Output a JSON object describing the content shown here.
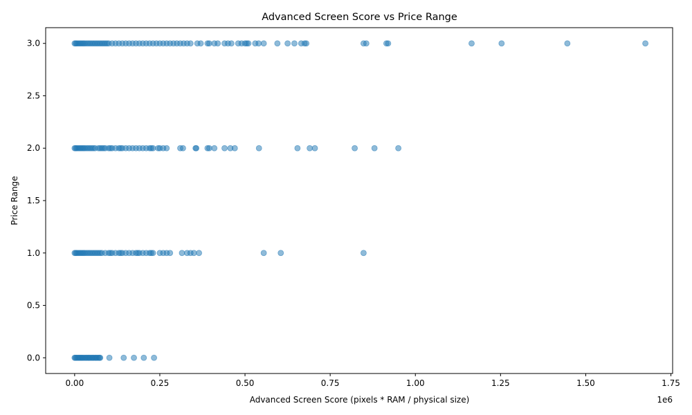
{
  "chart_data": {
    "type": "scatter",
    "title": "Advanced Screen Score vs Price Range",
    "xlabel": "Advanced Screen Score (pixels * RAM / physical size)",
    "ylabel": "Price Range",
    "x_offset_label": "1e6",
    "xlim": [
      -0.085,
      1.755
    ],
    "ylim": [
      -0.15,
      3.15
    ],
    "x_ticks": [
      0.0,
      0.25,
      0.5,
      0.75,
      1.0,
      1.25,
      1.5,
      1.75
    ],
    "x_tick_labels": [
      "0.00",
      "0.25",
      "0.50",
      "0.75",
      "1.00",
      "1.25",
      "1.50",
      "1.75"
    ],
    "y_ticks": [
      0.0,
      0.5,
      1.0,
      1.5,
      2.0,
      2.5,
      3.0
    ],
    "y_tick_labels": [
      "0.0",
      "0.5",
      "1.0",
      "1.5",
      "2.0",
      "2.5",
      "3.0"
    ],
    "grid": false,
    "marker_color": "#1f77b4",
    "marker_alpha": 0.5,
    "series": [
      {
        "price_range": 3,
        "x": [
          0.0,
          0.003,
          0.006,
          0.01,
          0.014,
          0.018,
          0.022,
          0.026,
          0.03,
          0.035,
          0.04,
          0.045,
          0.05,
          0.055,
          0.06,
          0.065,
          0.07,
          0.075,
          0.08,
          0.085,
          0.09,
          0.095,
          0.1,
          0.11,
          0.12,
          0.13,
          0.14,
          0.15,
          0.16,
          0.17,
          0.18,
          0.19,
          0.2,
          0.21,
          0.22,
          0.23,
          0.24,
          0.25,
          0.26,
          0.27,
          0.28,
          0.29,
          0.3,
          0.31,
          0.32,
          0.33,
          0.34,
          0.36,
          0.37,
          0.39,
          0.395,
          0.41,
          0.42,
          0.44,
          0.45,
          0.46,
          0.48,
          0.49,
          0.5,
          0.505,
          0.51,
          0.53,
          0.54,
          0.555,
          0.595,
          0.625,
          0.645,
          0.665,
          0.675,
          0.68,
          0.848,
          0.856,
          0.915,
          0.92,
          1.165,
          1.253,
          1.446,
          1.675
        ]
      },
      {
        "price_range": 2,
        "x": [
          0.0,
          0.003,
          0.006,
          0.01,
          0.014,
          0.018,
          0.022,
          0.026,
          0.03,
          0.035,
          0.04,
          0.045,
          0.05,
          0.055,
          0.06,
          0.07,
          0.075,
          0.08,
          0.085,
          0.09,
          0.1,
          0.105,
          0.11,
          0.12,
          0.13,
          0.135,
          0.14,
          0.15,
          0.16,
          0.17,
          0.18,
          0.19,
          0.2,
          0.21,
          0.22,
          0.225,
          0.23,
          0.245,
          0.25,
          0.26,
          0.27,
          0.31,
          0.318,
          0.355,
          0.357,
          0.39,
          0.395,
          0.41,
          0.44,
          0.457,
          0.47,
          0.541,
          0.654,
          0.69,
          0.705,
          0.822,
          0.88,
          0.95
        ]
      },
      {
        "price_range": 1,
        "x": [
          0.0,
          0.003,
          0.006,
          0.01,
          0.014,
          0.018,
          0.022,
          0.026,
          0.03,
          0.035,
          0.04,
          0.045,
          0.05,
          0.055,
          0.06,
          0.065,
          0.07,
          0.075,
          0.08,
          0.09,
          0.1,
          0.105,
          0.11,
          0.12,
          0.13,
          0.135,
          0.14,
          0.15,
          0.16,
          0.17,
          0.18,
          0.185,
          0.19,
          0.2,
          0.21,
          0.22,
          0.225,
          0.23,
          0.25,
          0.26,
          0.27,
          0.28,
          0.315,
          0.33,
          0.34,
          0.35,
          0.365,
          0.555,
          0.605,
          0.848
        ]
      },
      {
        "price_range": 0,
        "x": [
          0.0,
          0.002,
          0.005,
          0.008,
          0.011,
          0.014,
          0.017,
          0.02,
          0.023,
          0.026,
          0.03,
          0.033,
          0.036,
          0.04,
          0.043,
          0.046,
          0.05,
          0.053,
          0.056,
          0.06,
          0.063,
          0.066,
          0.07,
          0.073,
          0.075,
          0.102,
          0.144,
          0.174,
          0.203,
          0.233
        ]
      }
    ]
  }
}
